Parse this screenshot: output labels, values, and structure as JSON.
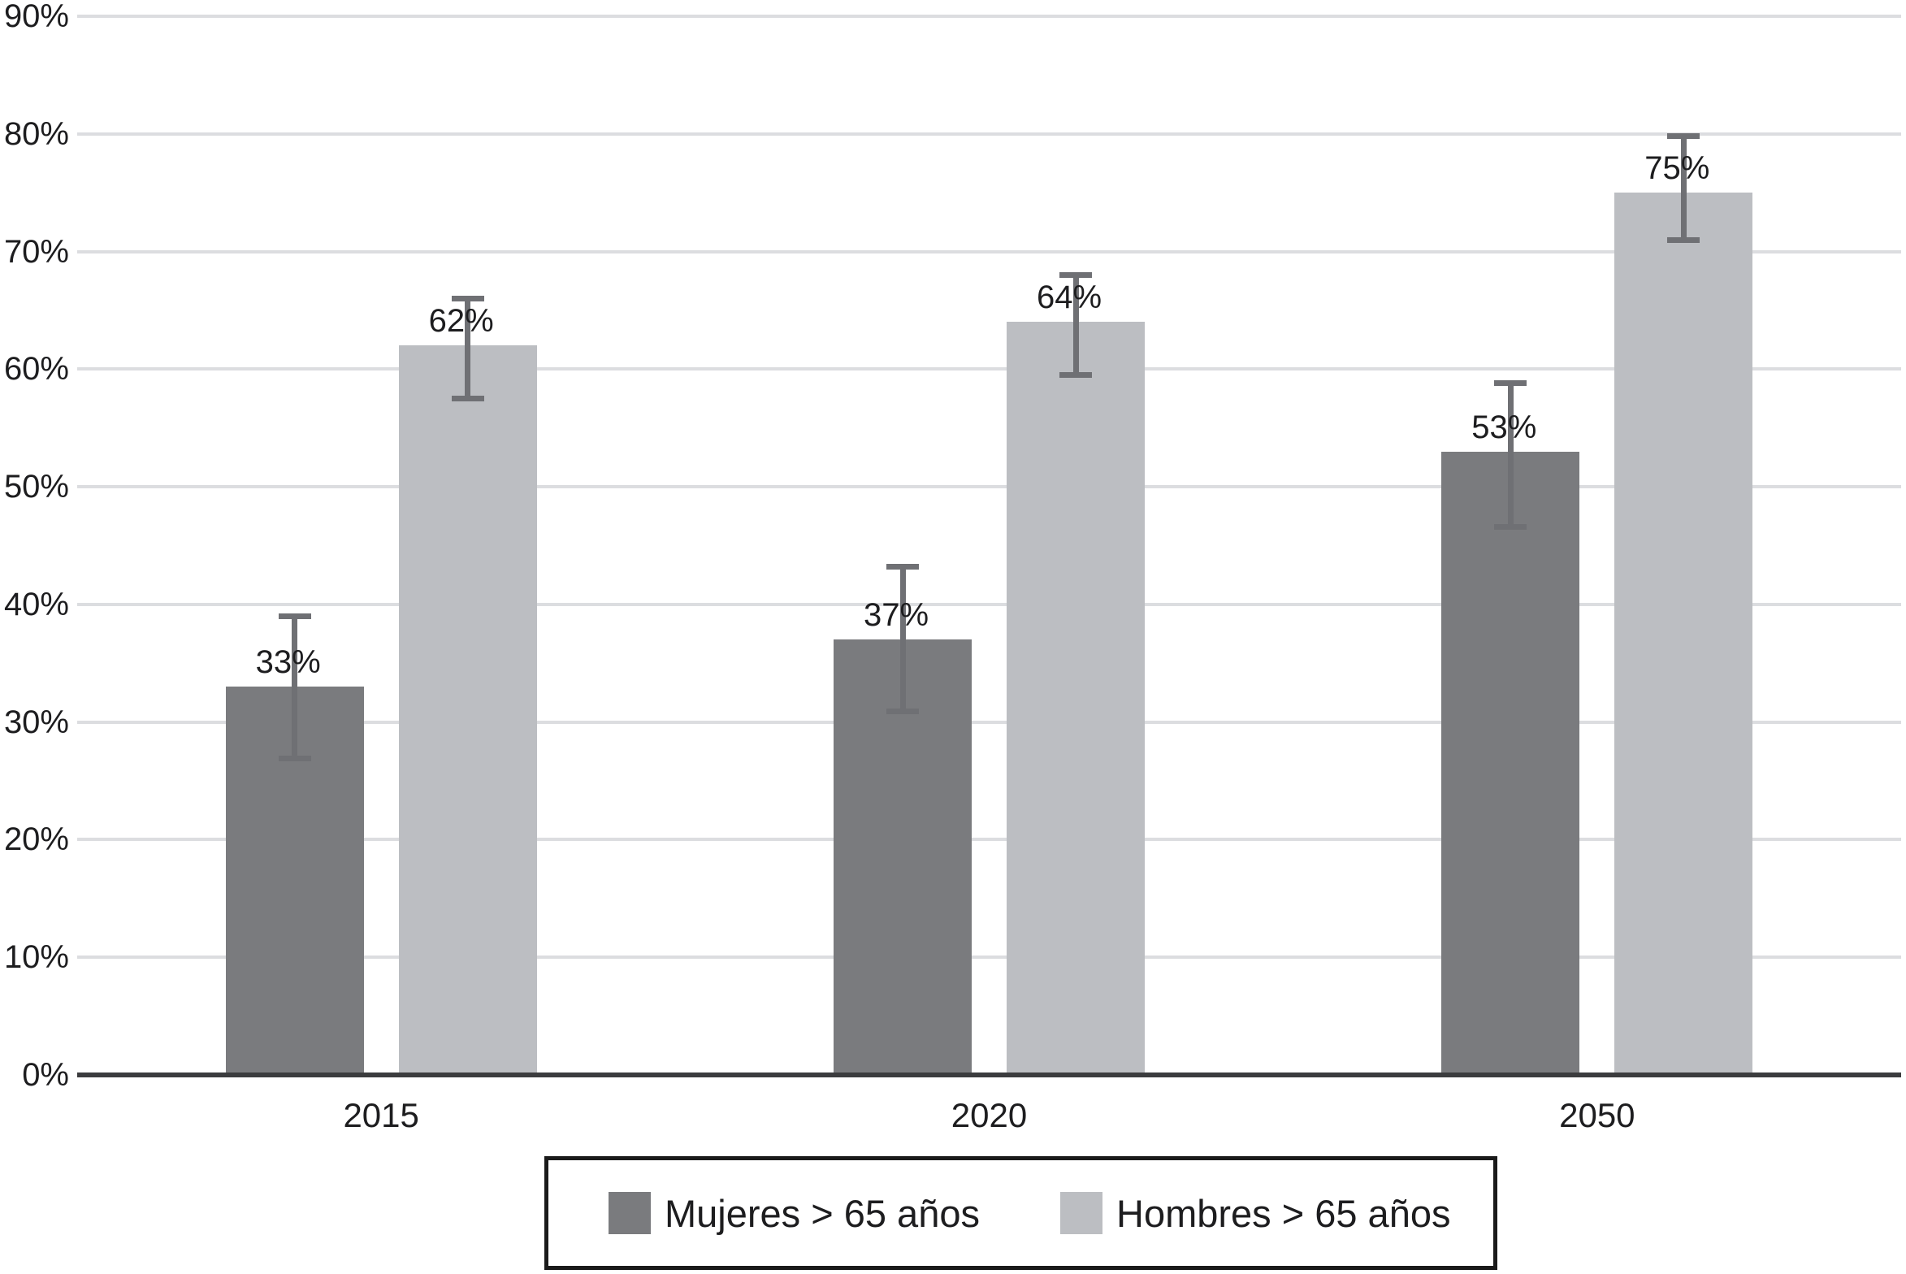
{
  "chart_data": {
    "type": "bar",
    "title": "",
    "categories": [
      "2015",
      "2020",
      "2050"
    ],
    "series": [
      {
        "name": "Mujeres > 65 años",
        "color": "#7a7b7e",
        "values": [
          33,
          37,
          53
        ],
        "value_labels": [
          "33%",
          "37%",
          "53%"
        ],
        "error_low": [
          26.9,
          30.9,
          46.6
        ],
        "error_high": [
          39.0,
          43.2,
          58.8
        ]
      },
      {
        "name": "Hombres > 65 años",
        "color": "#bcbec2",
        "values": [
          62,
          64,
          75
        ],
        "value_labels": [
          "62%",
          "64%",
          "75%"
        ],
        "error_low": [
          57.5,
          59.5,
          71.0
        ],
        "error_high": [
          66.0,
          68.0,
          79.8
        ]
      }
    ],
    "xlabel": "",
    "ylabel": "",
    "ylim": [
      0,
      90
    ],
    "ytick_step": 10,
    "ytick_labels": [
      "0%",
      "10%",
      "20%",
      "30%",
      "40%",
      "50%",
      "60%",
      "70%",
      "80%",
      "90%"
    ],
    "grid": true,
    "error_bars": true,
    "legend_position": "bottom"
  },
  "colors": {
    "background": "#ffffff",
    "grid": "#dcdde0",
    "axis": "#3b3c3e",
    "error_bar": "#6f7074",
    "text": "#1d1d1f",
    "legend_border": "#1a1a1a",
    "series_dark": "#7a7b7e",
    "series_light": "#bcbec2"
  }
}
